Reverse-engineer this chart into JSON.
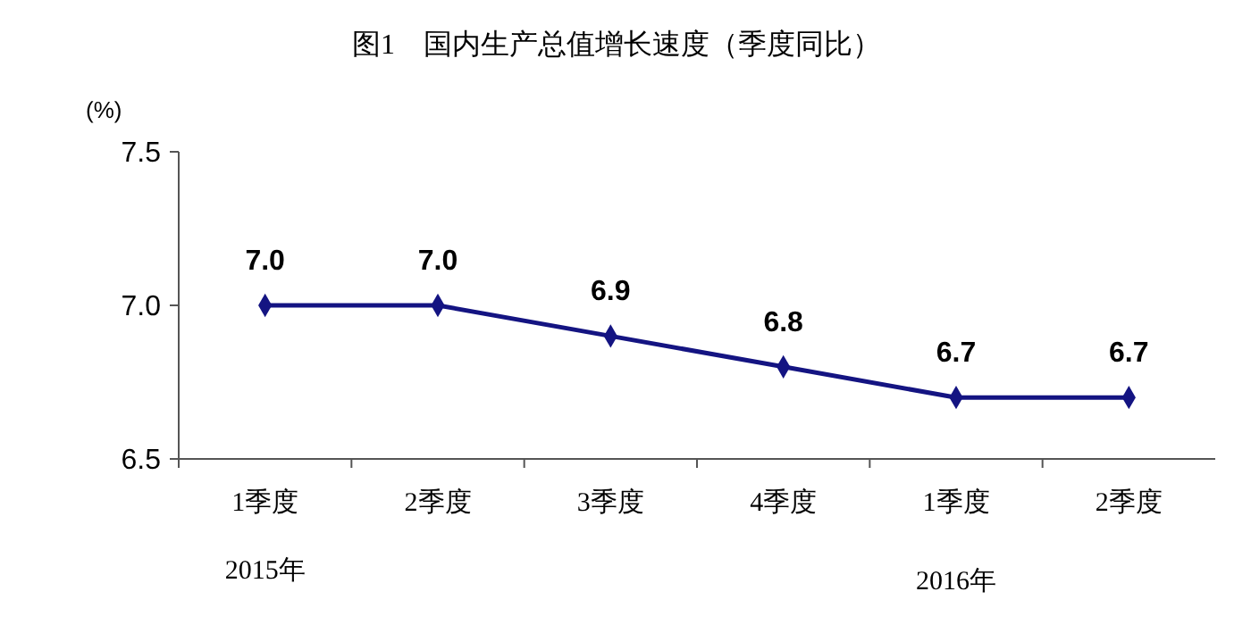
{
  "chart_data": {
    "type": "line",
    "title": "图1　国内生产总值增长速度（季度同比）",
    "ylabel": "(%)",
    "categories": [
      "1季度",
      "2季度",
      "3季度",
      "4季度",
      "1季度",
      "2季度"
    ],
    "series": [
      {
        "color": "#141482",
        "values": [
          7.0,
          7.0,
          6.9,
          6.8,
          6.7,
          6.7
        ],
        "value_labels": [
          "7.0",
          "7.0",
          "6.9",
          "6.8",
          "6.7",
          "6.7"
        ]
      }
    ],
    "ylim": [
      6.5,
      7.5
    ],
    "yticks": [
      6.5,
      {
        "value": 7,
        "label": "7.0"
      },
      7.5
    ],
    "marker": "diamond",
    "line_style": "solid",
    "grid": false,
    "annotations": [
      "2015年",
      "2016年"
    ]
  }
}
